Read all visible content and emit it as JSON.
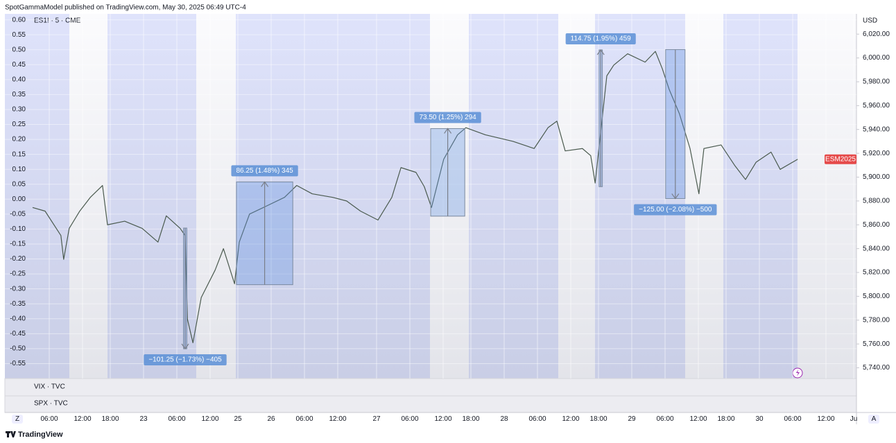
{
  "page": {
    "header": "SpotGammaModel published on TradingView.com, May 30, 2025 06:49 UTC-4",
    "brand": "TradingView",
    "pane_1": "VIX · TVC",
    "pane_2": "SPX · TVC",
    "button_left": "Z",
    "button_right": "A",
    "currency": "USD",
    "symbol_tag": "ESM2025"
  },
  "chart_data": {
    "type": "line",
    "title": "ES1! · 5 · CME",
    "x": [
      0,
      2.25,
      5.1,
      5.6,
      6.6,
      8.5,
      10.4,
      12.6,
      13.5,
      16.6,
      19.75,
      22.6,
      24.1,
      26.6,
      27.5,
      27.9,
      28.9,
      30.4,
      32.9,
      34.4,
      36.4,
      37.25,
      39.1,
      41.6,
      45.4,
      47.6,
      50.4,
      54.1,
      56.6,
      59.1,
      62.25,
      64.75,
      66.4,
      69.1,
      70.6,
      71.9,
      74.1,
      76.6,
      78.1,
      81.6,
      86.6,
      90.4,
      92.9,
      94.5,
      96,
      99.1,
      100.6,
      101.4,
      103.5,
      104.75,
      107.25,
      110.4,
      112.25,
      113.5,
      114.75,
      116.6,
      118.5,
      120.1,
      121,
      124.1,
      126.6,
      128.5,
      130.4,
      133.1,
      134.75,
      137.9
    ],
    "series": [
      {
        "name": "ES1! · 5 · CME",
        "color": "#4a5a4e",
        "axis": "y2",
        "values": [
          5874.5,
          5871.5,
          5851,
          5831,
          5857,
          5871.5,
          5883,
          5893,
          5860,
          5863,
          5857,
          5845.5,
          5867.5,
          5857,
          5851,
          5781,
          5761,
          5799,
          5822,
          5840,
          5810.5,
          5845.5,
          5869,
          5874.5,
          5883,
          5893,
          5886,
          5883,
          5880,
          5871.5,
          5864,
          5883,
          5908,
          5904,
          5892,
          5874.5,
          5915,
          5935.5,
          5941.5,
          5935.5,
          5930,
          5924,
          5941.5,
          5947,
          5922,
          5924,
          5918,
          5895,
          5985,
          5994,
          6003.5,
          5996.5,
          6005.5,
          5991,
          5973.5,
          5953,
          5924,
          5886,
          5924,
          5927,
          5909.5,
          5898,
          5912.5,
          5921,
          5906.5,
          5915
        ]
      }
    ],
    "xlim": [
      -5,
      148.5
    ],
    "xticks": [
      {
        "value": 3,
        "label": "06:00"
      },
      {
        "value": 9,
        "label": "12:00"
      },
      {
        "value": 14,
        "label": "18:00"
      },
      {
        "value": 20,
        "label": "23"
      },
      {
        "value": 26,
        "label": "06:00"
      },
      {
        "value": 32,
        "label": "12:00"
      },
      {
        "value": 37,
        "label": "25"
      },
      {
        "value": 43,
        "label": "26"
      },
      {
        "value": 49,
        "label": "06:00"
      },
      {
        "value": 55,
        "label": "12:00"
      },
      {
        "value": 62,
        "label": "27"
      },
      {
        "value": 68,
        "label": "06:00"
      },
      {
        "value": 74,
        "label": "12:00"
      },
      {
        "value": 79,
        "label": "18:00"
      },
      {
        "value": 85,
        "label": "28"
      },
      {
        "value": 91,
        "label": "06:00"
      },
      {
        "value": 97,
        "label": "12:00"
      },
      {
        "value": 102,
        "label": "18:00"
      },
      {
        "value": 108,
        "label": "29"
      },
      {
        "value": 114,
        "label": "06:00"
      },
      {
        "value": 120,
        "label": "12:00"
      },
      {
        "value": 125,
        "label": "18:00"
      },
      {
        "value": 131,
        "label": "30"
      },
      {
        "value": 137,
        "label": "06:00"
      },
      {
        "value": 143,
        "label": "12:00"
      },
      {
        "value": 148,
        "label": "Ju"
      }
    ],
    "ylim": [
      -0.6,
      0.62
    ],
    "yticks": [
      {
        "value": 0.6,
        "label": "0.60"
      },
      0.55,
      {
        "value": 0.5,
        "label": "0.50"
      },
      0.45,
      {
        "value": 0.4,
        "label": "0.40"
      },
      0.35,
      {
        "value": 0.3,
        "label": "0.30"
      },
      0.25,
      {
        "value": 0.2,
        "label": "0.20"
      },
      0.15,
      {
        "value": 0.1,
        "label": "0.10"
      },
      0.05,
      {
        "value": 0,
        "label": "0.00"
      },
      -0.05,
      {
        "value": -0.1,
        "label": "-0.10"
      },
      -0.15,
      {
        "value": -0.2,
        "label": "-0.20"
      },
      -0.25,
      {
        "value": -0.3,
        "label": "-0.30"
      },
      -0.35,
      {
        "value": -0.4,
        "label": "-0.40"
      },
      -0.45,
      {
        "value": -0.5,
        "label": "-0.50"
      },
      -0.55
    ],
    "y2lim": [
      5731,
      6037
    ],
    "y2ticks": [
      {
        "value": 6020,
        "label": "6,020.00"
      },
      {
        "value": 6000,
        "label": "6,000.00"
      },
      {
        "value": 5980,
        "label": "5,980.00"
      },
      {
        "value": 5960,
        "label": "5,960.00"
      },
      {
        "value": 5940,
        "label": "5,940.00"
      },
      {
        "value": 5920,
        "label": "5,920.00"
      },
      {
        "value": 5900,
        "label": "5,900.00"
      },
      {
        "value": 5880,
        "label": "5,880.00"
      },
      {
        "value": 5860,
        "label": "5,860.00"
      },
      {
        "value": 5840,
        "label": "5,840.00"
      },
      {
        "value": 5820,
        "label": "5,820.00"
      },
      {
        "value": 5800,
        "label": "5,800.00"
      },
      {
        "value": 5780,
        "label": "5,780.00"
      },
      {
        "value": 5760,
        "label": "5,760.00"
      },
      {
        "value": 5740,
        "label": "5,740.00"
      }
    ],
    "grid": true,
    "measurements": [
      {
        "label": "−101.25 (−1.73%) −405",
        "x": [
          27.2,
          27.8
        ],
        "from": 5857.25,
        "to": 5756
      },
      {
        "label": "86.25 (1.48%) 345",
        "x": [
          36.75,
          46.9
        ],
        "from": 5809.75,
        "to": 5896
      },
      {
        "label": "73.50 (1.25%) 294",
        "x": [
          71.75,
          77.9
        ],
        "from": 5867.25,
        "to": 5940.75
      },
      {
        "label": "114.75 (1.95%) 459",
        "x": [
          102.1,
          102.7
        ],
        "from": 5892,
        "to": 6006.75
      },
      {
        "label": "−125.00 (−2.08%) −500",
        "x": [
          114.1,
          117.6
        ],
        "from": 6007,
        "to": 5882
      }
    ]
  }
}
